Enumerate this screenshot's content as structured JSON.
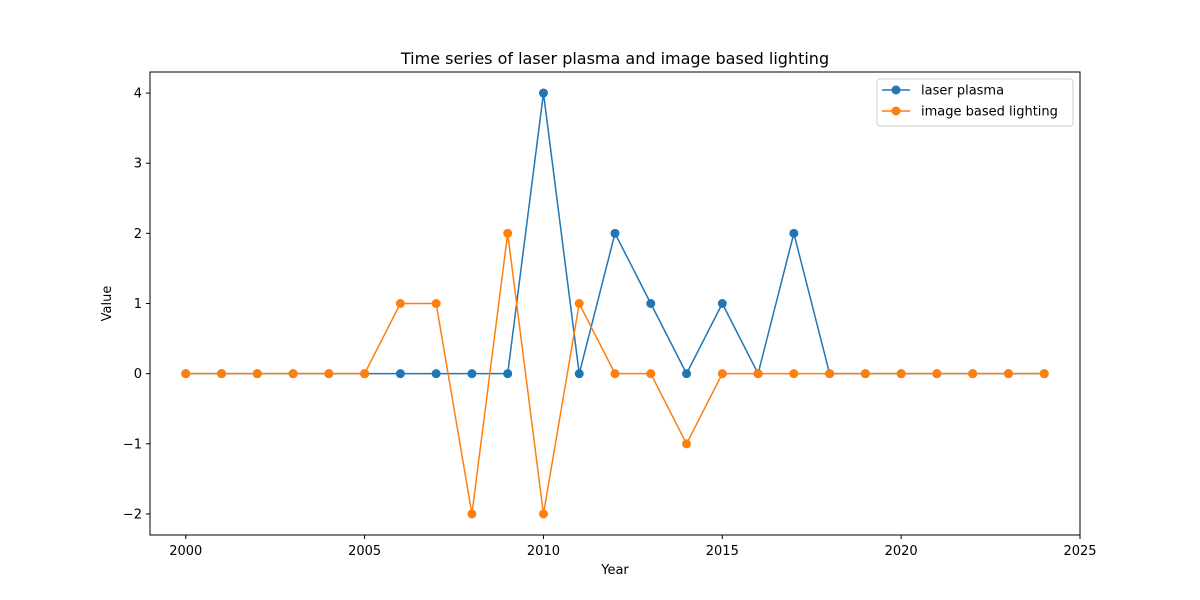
{
  "chart_data": {
    "type": "line",
    "title": "Time series of laser plasma and image based lighting",
    "xlabel": "Year",
    "ylabel": "Value",
    "xlim": [
      1999,
      2025
    ],
    "ylim": [
      -2.3,
      4.3
    ],
    "xticks": [
      2000,
      2005,
      2010,
      2015,
      2020,
      2025
    ],
    "xtick_labels": [
      "2000",
      "2005",
      "2010",
      "2015",
      "2020",
      "2025"
    ],
    "yticks": [
      -2,
      -1,
      0,
      1,
      2,
      3,
      4
    ],
    "ytick_labels": [
      "−2",
      "−1",
      "0",
      "1",
      "2",
      "3",
      "4"
    ],
    "grid": false,
    "legend_position": "top-right",
    "x": [
      2000,
      2001,
      2002,
      2003,
      2004,
      2005,
      2006,
      2007,
      2008,
      2009,
      2010,
      2011,
      2012,
      2013,
      2014,
      2015,
      2016,
      2017,
      2018,
      2019,
      2020,
      2021,
      2022,
      2023,
      2024
    ],
    "series": [
      {
        "name": "laser plasma",
        "color": "#1f77b4",
        "values": [
          0,
          0,
          0,
          0,
          0,
          0,
          0,
          0,
          0,
          0,
          4,
          0,
          2,
          1,
          0,
          1,
          0,
          2,
          0,
          0,
          0,
          0,
          0,
          0,
          0
        ]
      },
      {
        "name": "image based lighting",
        "color": "#ff7f0e",
        "values": [
          0,
          0,
          0,
          0,
          0,
          0,
          1,
          1,
          -2,
          2,
          -2,
          1,
          0,
          0,
          -1,
          0,
          0,
          0,
          0,
          0,
          0,
          0,
          0,
          0,
          0
        ]
      }
    ]
  }
}
